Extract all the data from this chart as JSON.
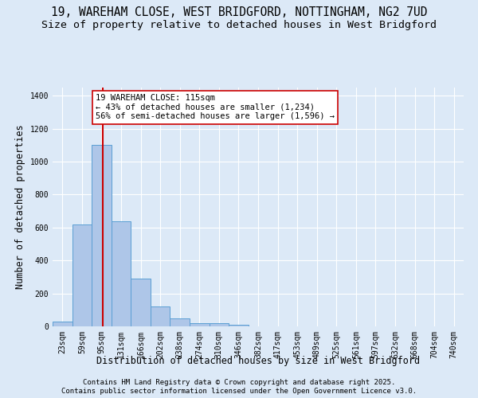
{
  "title1": "19, WAREHAM CLOSE, WEST BRIDGFORD, NOTTINGHAM, NG2 7UD",
  "title2": "Size of property relative to detached houses in West Bridgford",
  "xlabel": "Distribution of detached houses by size in West Bridgford",
  "ylabel": "Number of detached properties",
  "bar_color": "#aec6e8",
  "bar_edge_color": "#5a9fd4",
  "background_color": "#dce9f7",
  "fig_background_color": "#dce9f7",
  "grid_color": "#ffffff",
  "categories": [
    "23sqm",
    "59sqm",
    "95sqm",
    "131sqm",
    "166sqm",
    "202sqm",
    "238sqm",
    "274sqm",
    "310sqm",
    "346sqm",
    "382sqm",
    "417sqm",
    "453sqm",
    "489sqm",
    "525sqm",
    "561sqm",
    "597sqm",
    "632sqm",
    "668sqm",
    "704sqm",
    "740sqm"
  ],
  "bar_values": [
    30,
    620,
    1100,
    640,
    290,
    120,
    50,
    20,
    20,
    10,
    0,
    0,
    0,
    0,
    0,
    0,
    0,
    0,
    0,
    0,
    0
  ],
  "ylim": [
    0,
    1450
  ],
  "yticks": [
    0,
    200,
    400,
    600,
    800,
    1000,
    1200,
    1400
  ],
  "property_line_color": "#cc0000",
  "annotation_text": "19 WAREHAM CLOSE: 115sqm\n← 43% of detached houses are smaller (1,234)\n56% of semi-detached houses are larger (1,596) →",
  "annotation_box_color": "#ffffff",
  "annotation_box_edge_color": "#cc0000",
  "footer1": "Contains HM Land Registry data © Crown copyright and database right 2025.",
  "footer2": "Contains public sector information licensed under the Open Government Licence v3.0.",
  "title_fontsize": 10.5,
  "subtitle_fontsize": 9.5,
  "axis_label_fontsize": 8.5,
  "tick_fontsize": 7,
  "annotation_fontsize": 7.5,
  "footer_fontsize": 6.5
}
